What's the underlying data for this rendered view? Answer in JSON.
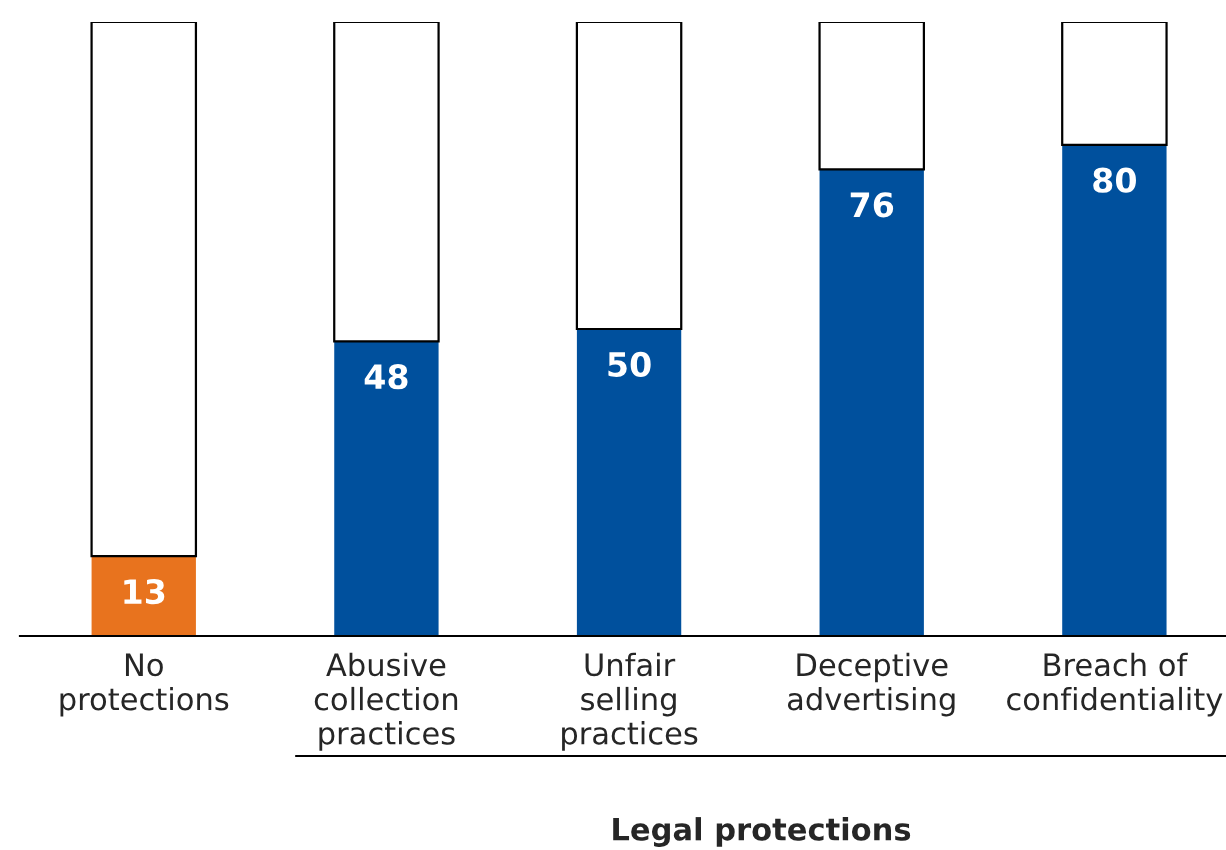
{
  "chart_data": {
    "type": "bar",
    "stacked": true,
    "categories": [
      "No\nprotections",
      "Abusive\ncollection\npractices",
      "Unfair\nselling\npractices",
      "Deceptive\nadvertising",
      "Breach of\nconfidentiality"
    ],
    "series": [
      {
        "colors": [
          "#e8731e",
          "#00509d",
          "#00509d",
          "#00509d",
          "#00509d"
        ],
        "values": [
          13,
          48,
          50,
          76,
          80
        ],
        "value_labels": [
          "13",
          "48",
          "50",
          "76",
          "80"
        ]
      },
      {
        "color": "#ffffff",
        "values": [
          87,
          52,
          50,
          24,
          20
        ]
      }
    ],
    "ylim": [
      0,
      100
    ],
    "tick_labels": "x",
    "annotations": [
      "Legal protections"
    ]
  }
}
